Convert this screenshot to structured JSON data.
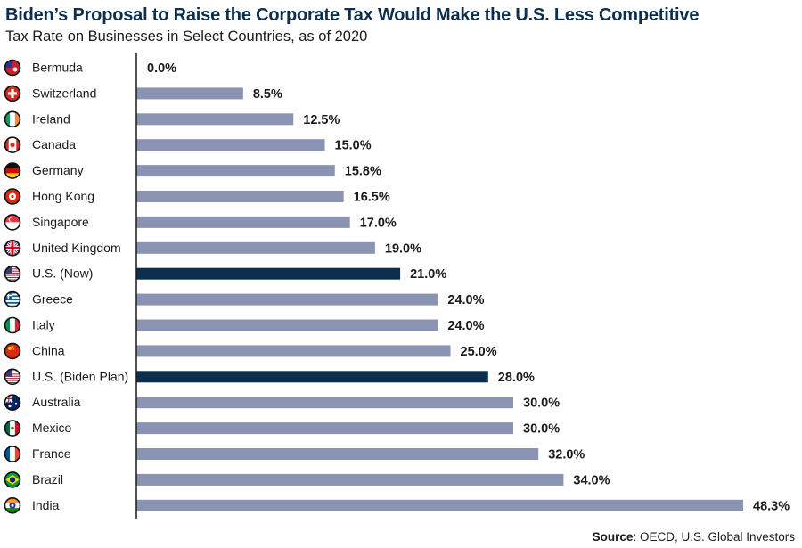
{
  "chart_data": {
    "type": "bar",
    "orientation": "horizontal",
    "title": "Biden’s Proposal to Raise the Corporate Tax Would Make the U.S. Less Competitive",
    "subtitle": "Tax Rate on Businesses in Select Countries, as of 2020",
    "xlabel": "",
    "ylabel": "",
    "xlim": [
      0,
      50
    ],
    "grid": false,
    "value_suffix": "%",
    "categories": [
      "Bermuda",
      "Switzerland",
      "Ireland",
      "Canada",
      "Germany",
      "Hong Kong",
      "Singapore",
      "United Kingdom",
      "U.S. (Now)",
      "Greece",
      "Italy",
      "China",
      "U.S. (Biden Plan)",
      "Australia",
      "Mexico",
      "France",
      "Brazil",
      "India"
    ],
    "values": [
      0.0,
      8.5,
      12.5,
      15.0,
      15.8,
      16.5,
      17.0,
      19.0,
      21.0,
      24.0,
      24.0,
      25.0,
      28.0,
      30.0,
      30.0,
      32.0,
      34.0,
      48.3
    ],
    "value_labels": [
      "0.0%",
      "8.5%",
      "12.5%",
      "15.0%",
      "15.8%",
      "16.5%",
      "17.0%",
      "19.0%",
      "21.0%",
      "24.0%",
      "24.0%",
      "25.0%",
      "28.0%",
      "30.0%",
      "30.0%",
      "32.0%",
      "34.0%",
      "48.3%"
    ],
    "highlighted": [
      "U.S. (Now)",
      "U.S. (Biden Plan)"
    ],
    "flag_icons": [
      "bermuda-flag-icon",
      "switzerland-flag-icon",
      "ireland-flag-icon",
      "canada-flag-icon",
      "germany-flag-icon",
      "hong-kong-flag-icon",
      "singapore-flag-icon",
      "united-kingdom-flag-icon",
      "us-flag-icon",
      "greece-flag-icon",
      "italy-flag-icon",
      "china-flag-icon",
      "us-flag-icon",
      "australia-flag-icon",
      "mexico-flag-icon",
      "france-flag-icon",
      "brazil-flag-icon",
      "india-flag-icon"
    ],
    "colors": {
      "default_bar": "#8a93b2",
      "highlight_bar": "#0d2e4c",
      "axis": "#1a1a1a",
      "title": "#0d2e4c"
    }
  },
  "source": {
    "label": "Source",
    "text": ": OECD, U.S. Global Investors"
  }
}
